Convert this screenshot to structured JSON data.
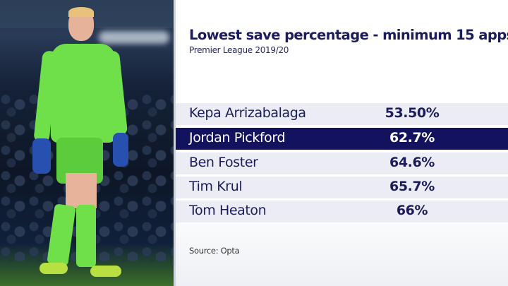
{
  "title": "Lowest save percentage - minimum 15 apps",
  "subtitle": "Premier League 2019/20",
  "rows": [
    {
      "name": "Kepa Arrizabalaga",
      "value": "53.50%",
      "highlighted": false
    },
    {
      "name": "Jordan Pickford",
      "value": "62.7%",
      "highlighted": true
    },
    {
      "name": "Ben Foster",
      "value": "64.6%",
      "highlighted": false
    },
    {
      "name": "Tim Krul",
      "value": "65.7%",
      "highlighted": false
    },
    {
      "name": "Tom Heaton",
      "value": "66%",
      "highlighted": false
    }
  ],
  "source": "Source: Opta",
  "colors": {
    "navy": "#12125e",
    "row_bg": "#ebecf4",
    "kit": "#6fe04a"
  }
}
